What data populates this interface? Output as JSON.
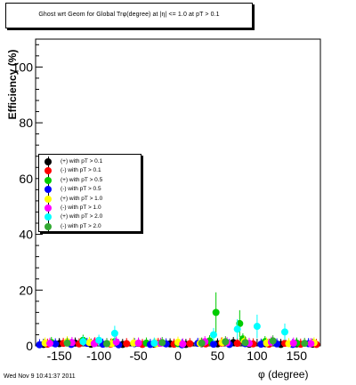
{
  "chart_data": {
    "type": "scatter",
    "title": "Ghost wrt Geom for Global Trφ(degree) at |η| <= 1.0 at pT > 0.1",
    "xlabel": "φ (degree)",
    "ylabel": "Efficiency (%)",
    "xlim": [
      -180,
      180
    ],
    "ylim": [
      0,
      110
    ],
    "x_ticks": [
      -150,
      -100,
      -50,
      0,
      50,
      100,
      150
    ],
    "x_tick_labels": [
      "-150",
      "-100",
      "-50",
      "0",
      "50",
      "100",
      "150"
    ],
    "y_ticks": [
      0,
      20,
      40,
      60,
      80,
      100
    ],
    "y_tick_labels": [
      "0",
      "20",
      "40",
      "60",
      "80",
      "100"
    ],
    "grid": false,
    "legend_position": "left-middle",
    "series": [
      {
        "name": "(+) with pT > 0.1",
        "color": "#000000",
        "points": [
          [
            -170,
            0.5
          ],
          [
            -150,
            0.8
          ],
          [
            -130,
            1.0
          ],
          [
            -110,
            0.6
          ],
          [
            -90,
            0.8
          ],
          [
            -70,
            0.5
          ],
          [
            -50,
            0.9
          ],
          [
            -30,
            0.6
          ],
          [
            -10,
            0.7
          ],
          [
            10,
            0.5
          ],
          [
            30,
            0.8
          ],
          [
            50,
            0.7
          ],
          [
            70,
            1.2
          ],
          [
            90,
            0.6
          ],
          [
            110,
            0.8
          ],
          [
            130,
            0.5
          ],
          [
            150,
            0.7
          ],
          [
            170,
            0.6
          ]
        ]
      },
      {
        "name": "(-) with pT > 0.1",
        "color": "#ff0000",
        "points": [
          [
            -165,
            0.6
          ],
          [
            -145,
            0.9
          ],
          [
            -125,
            0.7
          ],
          [
            -105,
            1.1
          ],
          [
            -85,
            0.6
          ],
          [
            -65,
            0.8
          ],
          [
            -45,
            0.5
          ],
          [
            -25,
            0.9
          ],
          [
            -5,
            0.6
          ],
          [
            15,
            0.8
          ],
          [
            35,
            0.7
          ],
          [
            55,
            1.0
          ],
          [
            75,
            0.9
          ],
          [
            95,
            0.7
          ],
          [
            115,
            0.6
          ],
          [
            135,
            0.9
          ],
          [
            155,
            0.6
          ],
          [
            175,
            0.5
          ]
        ]
      },
      {
        "name": "(+) with pT > 0.5",
        "color": "#00cc00",
        "points": [
          [
            -160,
            1.2
          ],
          [
            -120,
            2.0
          ],
          [
            -80,
            1.5
          ],
          [
            -40,
            1.0
          ],
          [
            0,
            0.8
          ],
          [
            40,
            1.8
          ],
          [
            48,
            12.0
          ],
          [
            78,
            8.0
          ],
          [
            82,
            2.5
          ],
          [
            110,
            1.5
          ],
          [
            150,
            1.0
          ]
        ]
      },
      {
        "name": "(-) with pT > 0.5",
        "color": "#0000ff",
        "points": [
          [
            -175,
            0.4
          ],
          [
            -155,
            0.7
          ],
          [
            -135,
            0.5
          ],
          [
            -115,
            0.9
          ],
          [
            -95,
            0.6
          ],
          [
            -75,
            0.4
          ],
          [
            -55,
            0.8
          ],
          [
            -35,
            0.5
          ],
          [
            -15,
            0.7
          ],
          [
            5,
            0.4
          ],
          [
            25,
            0.9
          ],
          [
            45,
            0.6
          ],
          [
            65,
            0.5
          ],
          [
            85,
            0.8
          ],
          [
            105,
            0.6
          ],
          [
            125,
            0.7
          ],
          [
            145,
            0.5
          ],
          [
            165,
            0.8
          ]
        ]
      },
      {
        "name": "(+) with pT > 1.0",
        "color": "#ffff00",
        "points": [
          [
            -168,
            1.0
          ],
          [
            -140,
            1.5
          ],
          [
            -112,
            1.2
          ],
          [
            -84,
            0.8
          ],
          [
            -56,
            1.0
          ],
          [
            -28,
            0.7
          ],
          [
            0,
            1.3
          ],
          [
            28,
            0.9
          ],
          [
            56,
            1.2
          ],
          [
            84,
            1.6
          ],
          [
            112,
            1.0
          ],
          [
            140,
            0.8
          ],
          [
            172,
            1.1
          ]
        ]
      },
      {
        "name": "(-) with pT > 1.0",
        "color": "#ff00ff",
        "points": [
          [
            -162,
            0.9
          ],
          [
            -134,
            1.2
          ],
          [
            -106,
            0.8
          ],
          [
            -78,
            1.4
          ],
          [
            -50,
            1.0
          ],
          [
            -22,
            0.9
          ],
          [
            6,
            0.7
          ],
          [
            34,
            1.5
          ],
          [
            62,
            1.1
          ],
          [
            90,
            0.9
          ],
          [
            118,
            1.3
          ],
          [
            146,
            1.0
          ],
          [
            168,
            0.8
          ]
        ]
      },
      {
        "name": "(+) with pT > 2.0",
        "color": "#00ffff",
        "points": [
          [
            -120,
            1.5
          ],
          [
            -100,
            2.0
          ],
          [
            -80,
            4.5
          ],
          [
            -30,
            1.0
          ],
          [
            45,
            4.0
          ],
          [
            75,
            6.0
          ],
          [
            100,
            7.0
          ],
          [
            135,
            5.0
          ]
        ]
      },
      {
        "name": "(-) with pT > 2.0",
        "color": "#33aa33",
        "points": [
          [
            -140,
            1.0
          ],
          [
            -90,
            0.8
          ],
          [
            -20,
            1.2
          ],
          [
            30,
            1.0
          ],
          [
            60,
            1.5
          ],
          [
            85,
            1.2
          ],
          [
            120,
            1.8
          ],
          [
            160,
            0.9
          ]
        ]
      }
    ]
  },
  "footer": {
    "datestamp": "Wed Nov  9 10:41:37 2011"
  }
}
